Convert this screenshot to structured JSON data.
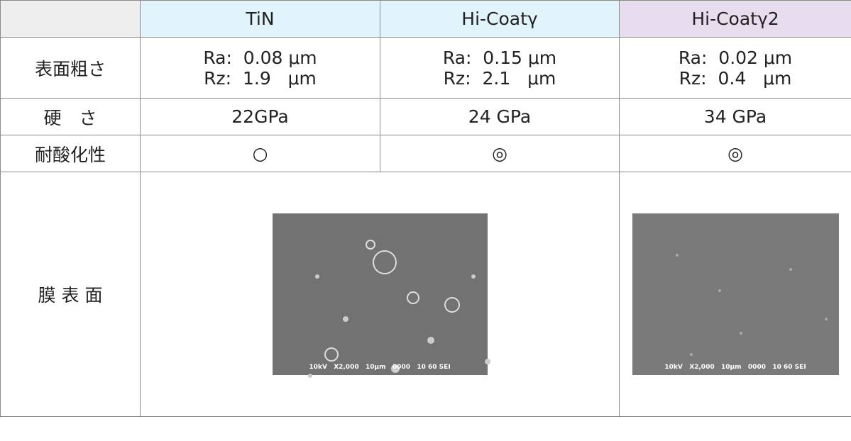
{
  "table": {
    "header": [
      "TiN",
      "Hi-Coatγ",
      "Hi-Coatγ2"
    ],
    "rows": [
      {
        "label": "表面粗さ",
        "cells": [
          [
            "Ra:  0.08 μm",
            "Rz:  1.9   μm"
          ],
          [
            "Ra:  0.15 μm",
            "Rz:  2.1   μm"
          ],
          [
            "Ra:  0.02 μm",
            "Rz:  0.4   μm"
          ]
        ]
      },
      {
        "label": "硬　さ",
        "cells": [
          "22GPa",
          "24 GPa",
          "34 GPa"
        ]
      },
      {
        "label": "耐酸化性",
        "cells": [
          "○",
          "◎",
          "◎"
        ]
      },
      {
        "label": "膜 表 面",
        "images": [
          {
            "caption": "10kV   X2,000   10μm   0000   10 60 SEI"
          },
          {
            "caption": "10kV   X2,000   10μm   0000   10 60 SEI"
          }
        ]
      }
    ]
  }
}
